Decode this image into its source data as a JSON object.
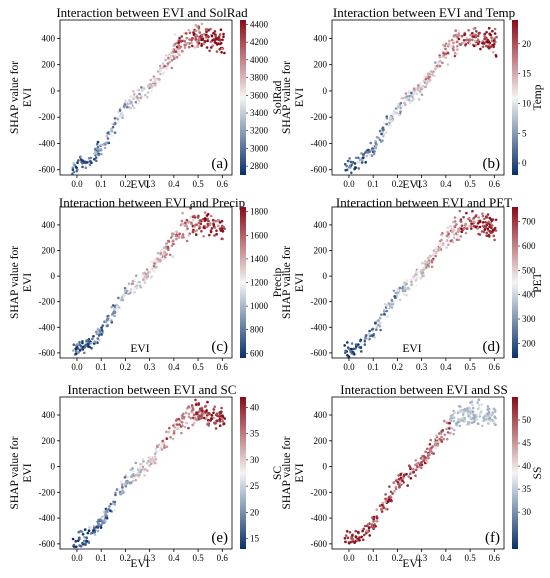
{
  "colors": {
    "low": "#08306b",
    "mid": "#f4f4f4",
    "high": "#8b0a15"
  },
  "chart_data": [
    {
      "type": "scatter",
      "panel": "(a)",
      "title": "Interaction between EVI and SolRad",
      "xlabel": "EVI",
      "ylabel": [
        "SHAP value for",
        "EVI"
      ],
      "xlim": [
        -0.07,
        0.64
      ],
      "ylim": [
        -640,
        540
      ],
      "xticks": [
        0.0,
        0.1,
        0.2,
        0.3,
        0.4,
        0.5,
        0.6
      ],
      "yticks": [
        -600,
        -400,
        -200,
        0,
        200,
        400
      ],
      "color_feature": "SolRad",
      "colorbar_range": [
        2700,
        4450
      ],
      "colorbar_ticks": [
        2800,
        3000,
        3200,
        3400,
        3600,
        3800,
        4000,
        4200,
        4400
      ],
      "color_trend": "increasing",
      "shap_curve_x": [
        -0.02,
        0.05,
        0.1,
        0.15,
        0.2,
        0.25,
        0.3,
        0.35,
        0.4,
        0.45,
        0.5,
        0.55,
        0.6
      ],
      "shap_curve_y": [
        -580,
        -540,
        -440,
        -280,
        -130,
        -50,
        30,
        160,
        300,
        390,
        420,
        400,
        370
      ]
    },
    {
      "type": "scatter",
      "panel": "(b)",
      "title": "Interaction between EVI and Temp",
      "xlabel": "EVI",
      "ylabel": [
        "SHAP value for",
        "EVI"
      ],
      "xlim": [
        -0.07,
        0.64
      ],
      "ylim": [
        -640,
        540
      ],
      "xticks": [
        0.0,
        0.1,
        0.2,
        0.3,
        0.4,
        0.5,
        0.6
      ],
      "yticks": [
        -600,
        -400,
        -200,
        0,
        200,
        400
      ],
      "color_feature": "Temp",
      "colorbar_range": [
        -2,
        24
      ],
      "colorbar_ticks": [
        0,
        5,
        10,
        15,
        20
      ],
      "color_trend": "increasing",
      "shap_curve_x": [
        -0.02,
        0.05,
        0.1,
        0.15,
        0.2,
        0.25,
        0.3,
        0.35,
        0.4,
        0.45,
        0.5,
        0.55,
        0.6
      ],
      "shap_curve_y": [
        -580,
        -540,
        -440,
        -280,
        -130,
        -50,
        30,
        160,
        300,
        390,
        420,
        400,
        370
      ]
    },
    {
      "type": "scatter",
      "panel": "(c)",
      "title": "Interaction between EVI and Precip",
      "xlabel": "EVI",
      "ylabel": [
        "SHAP value for",
        "EVI"
      ],
      "xlim": [
        -0.07,
        0.64
      ],
      "ylim": [
        -640,
        540
      ],
      "xticks": [
        0.0,
        0.1,
        0.2,
        0.3,
        0.4,
        0.5,
        0.6
      ],
      "yticks": [
        -600,
        -400,
        -200,
        0,
        200,
        400
      ],
      "color_feature": "Precip",
      "colorbar_range": [
        560,
        1840
      ],
      "colorbar_ticks": [
        600,
        800,
        1000,
        1200,
        1400,
        1600,
        1800
      ],
      "color_trend": "increasing",
      "shap_curve_x": [
        -0.02,
        0.05,
        0.1,
        0.15,
        0.2,
        0.25,
        0.3,
        0.35,
        0.4,
        0.45,
        0.5,
        0.55,
        0.6
      ],
      "shap_curve_y": [
        -580,
        -540,
        -440,
        -280,
        -130,
        -50,
        30,
        160,
        300,
        390,
        420,
        400,
        370
      ]
    },
    {
      "type": "scatter",
      "panel": "(d)",
      "title": "Interaction between EVI and PET",
      "xlabel": "EVI",
      "ylabel": [
        "SHAP value for",
        "EVI"
      ],
      "xlim": [
        -0.07,
        0.64
      ],
      "ylim": [
        -640,
        540
      ],
      "xticks": [
        0.0,
        0.1,
        0.2,
        0.3,
        0.4,
        0.5,
        0.6
      ],
      "yticks": [
        -600,
        -400,
        -200,
        0,
        200,
        400
      ],
      "color_feature": "PET",
      "colorbar_range": [
        140,
        760
      ],
      "colorbar_ticks": [
        200,
        300,
        400,
        500,
        600,
        700
      ],
      "color_trend": "increasing",
      "shap_curve_x": [
        -0.02,
        0.05,
        0.1,
        0.15,
        0.2,
        0.25,
        0.3,
        0.35,
        0.4,
        0.45,
        0.5,
        0.55,
        0.6
      ],
      "shap_curve_y": [
        -580,
        -540,
        -440,
        -280,
        -130,
        -50,
        30,
        160,
        300,
        390,
        420,
        400,
        370
      ]
    },
    {
      "type": "scatter",
      "panel": "(e)",
      "title": "Interaction between EVI and SC",
      "xlabel": "EVI",
      "ylabel": [
        "SHAP value for",
        "EVI"
      ],
      "xlim": [
        -0.07,
        0.64
      ],
      "ylim": [
        -640,
        540
      ],
      "xticks": [
        0.0,
        0.1,
        0.2,
        0.3,
        0.4,
        0.5,
        0.6
      ],
      "yticks": [
        -600,
        -400,
        -200,
        0,
        200,
        400
      ],
      "color_feature": "SC",
      "colorbar_range": [
        13,
        42
      ],
      "colorbar_ticks": [
        15,
        20,
        25,
        30,
        35,
        40
      ],
      "color_trend": "increasing",
      "shap_curve_x": [
        -0.02,
        0.05,
        0.1,
        0.15,
        0.2,
        0.25,
        0.3,
        0.35,
        0.4,
        0.45,
        0.5,
        0.55,
        0.6
      ],
      "shap_curve_y": [
        -580,
        -540,
        -440,
        -280,
        -130,
        -50,
        30,
        160,
        300,
        390,
        420,
        400,
        370
      ]
    },
    {
      "type": "scatter",
      "panel": "(f)",
      "title": "Interaction between EVI and SS",
      "xlabel": "EVI",
      "ylabel": [
        "SHAP value for",
        "EVI"
      ],
      "xlim": [
        -0.07,
        0.64
      ],
      "ylim": [
        -640,
        540
      ],
      "xticks": [
        0.0,
        0.1,
        0.2,
        0.3,
        0.4,
        0.5,
        0.6
      ],
      "yticks": [
        -600,
        -400,
        -200,
        0,
        200,
        400
      ],
      "color_feature": "SS",
      "colorbar_range": [
        22,
        55
      ],
      "colorbar_ticks": [
        30,
        35,
        40,
        45,
        50
      ],
      "color_trend": "decreasing",
      "shap_curve_x": [
        -0.02,
        0.05,
        0.1,
        0.15,
        0.2,
        0.25,
        0.3,
        0.35,
        0.4,
        0.45,
        0.5,
        0.55,
        0.6
      ],
      "shap_curve_y": [
        -580,
        -540,
        -440,
        -280,
        -130,
        -50,
        30,
        160,
        300,
        390,
        420,
        400,
        370
      ]
    }
  ]
}
